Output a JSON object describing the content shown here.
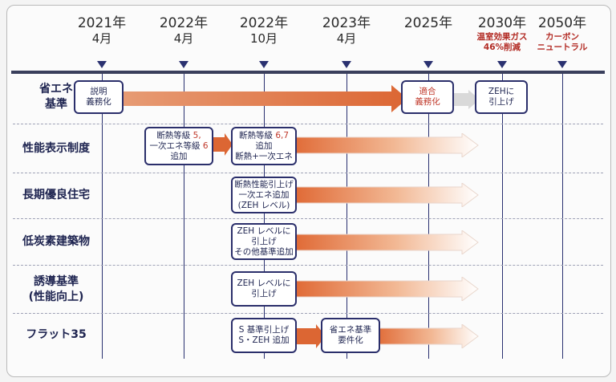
{
  "timeline": {
    "d2021": {
      "year": "2021年",
      "month": "4月"
    },
    "d2022a": {
      "year": "2022年",
      "month": "4月"
    },
    "d2022b": {
      "year": "2022年",
      "month": "10月"
    },
    "d2023": {
      "year": "2023年",
      "month": "4月"
    },
    "d2025": {
      "year": "2025年"
    },
    "d2030": {
      "year": "2030年",
      "note1": "温室効果ガス",
      "note2": "46%削減"
    },
    "d2050": {
      "year": "2050年",
      "note1": "カーボン",
      "note2": "ニュートラル"
    }
  },
  "rows": {
    "shoene": {
      "l1": "省エネ",
      "l2": "基準"
    },
    "seino": {
      "l1": "性能表示制度"
    },
    "choki": {
      "l1": "長期優良住宅"
    },
    "teitanso": {
      "l1": "低炭素建築物"
    },
    "yudo": {
      "l1": "誘導基準",
      "l2": "(性能向上)"
    },
    "flat": {
      "l1": "フラット35"
    }
  },
  "boxes": {
    "setsumei": {
      "l1": "説明",
      "l2": "義務化"
    },
    "tekigo": {
      "l1": "適合",
      "l2": "義務化"
    },
    "zeh2030": {
      "l1": "ZEHに",
      "l2": "引上げ"
    },
    "dannetsu5": {
      "l1a": "断熱等級 ",
      "l1b": "5,",
      "l2a": "一次エネ等級 ",
      "l2b": "6",
      "l3": "追加"
    },
    "dannetsu67": {
      "l1a": "断熱等級 ",
      "l1b": "6,7",
      "l2": "追加",
      "l3": "断熱+一次エネ"
    },
    "choki": {
      "l1": "断熱性能引上げ",
      "l2": "一次エネ追加",
      "l3": "(ZEH レベル)"
    },
    "teitanso": {
      "l1": "ZEH レベルに",
      "l2": "引上げ",
      "l3": "その他基準追加"
    },
    "yudo": {
      "l1": "ZEH レベルに",
      "l2": "引上げ"
    },
    "flat2022": {
      "l1": "S 基準引上げ",
      "l2": "S・ZEH 追加"
    },
    "flat2023": {
      "l1": "省エネ基準",
      "l2": "要件化"
    }
  }
}
